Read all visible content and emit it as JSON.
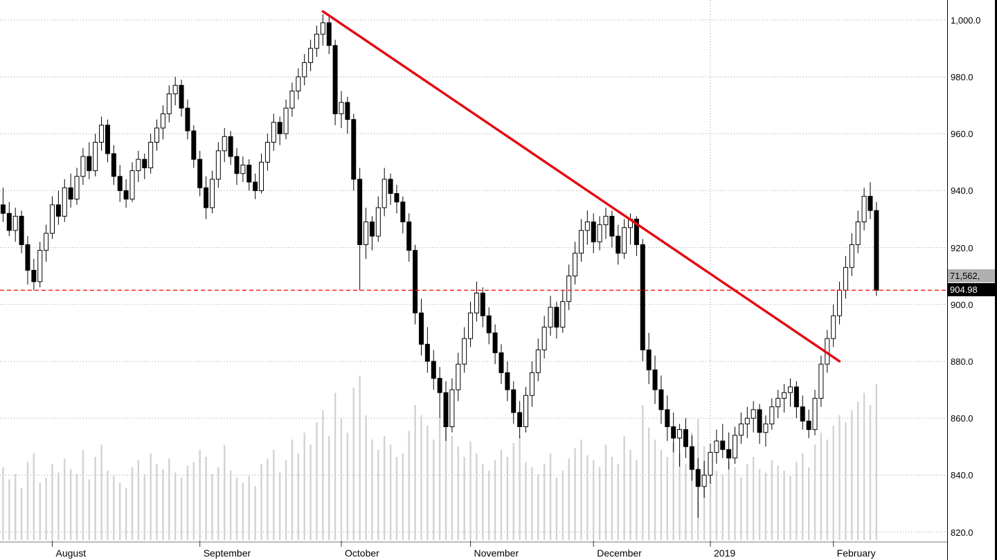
{
  "colors": {
    "up_candle": "#ffffff",
    "down_candle": "#000000",
    "candle_border": "#000000",
    "volume_bar": "#d2d2d2",
    "grid": "#9a9a9a",
    "axis_line": "#777777",
    "tick_mark": "#333333",
    "trend_line": "#e30b13",
    "last_price_line": "#ff1111",
    "price_tag_bg": "#000000",
    "price_tag_text": "#ffffff",
    "volume_tag_bg": "#b0b0b0",
    "volume_tag_text": "#000000"
  },
  "chart_data": {
    "type": "candlestick",
    "title": "",
    "xlabel": "",
    "ylabel": "",
    "ylim": [
      816,
      1007
    ],
    "right_pad": 11,
    "grid": true,
    "last_price": 904.98,
    "last_price_label": "904.98",
    "volume_label": "71,562,",
    "y_ticks": [
      {
        "value": 1000,
        "label": "1,000.0"
      },
      {
        "value": 980,
        "label": "980.0"
      },
      {
        "value": 960,
        "label": "960.0"
      },
      {
        "value": 940,
        "label": "940.0"
      },
      {
        "value": 920,
        "label": "920.0"
      },
      {
        "value": 900,
        "label": "900.0"
      },
      {
        "value": 880,
        "label": "880.0"
      },
      {
        "value": 860,
        "label": "860.0"
      },
      {
        "value": 840,
        "label": "840.0"
      },
      {
        "value": 820,
        "label": "820.0"
      }
    ],
    "x_ticks": [
      {
        "label": "August",
        "index": 8
      },
      {
        "label": "September",
        "index": 32
      },
      {
        "label": "October",
        "index": 55
      },
      {
        "label": "November",
        "index": 76
      },
      {
        "label": "December",
        "index": 96
      },
      {
        "label": "2019",
        "index": 115,
        "gridline": true
      },
      {
        "label": "February",
        "index": 135
      }
    ],
    "trendline": {
      "from": {
        "index": 52,
        "price": 1003
      },
      "to": {
        "index": 136,
        "price": 880
      }
    },
    "candles": [
      [
        935,
        941,
        929,
        932
      ],
      [
        932,
        936,
        924,
        926
      ],
      [
        926,
        934,
        922,
        931
      ],
      [
        931,
        933,
        918,
        921
      ],
      [
        921,
        924,
        907,
        912
      ],
      [
        912,
        916,
        905,
        908
      ],
      [
        908,
        922,
        906,
        919
      ],
      [
        919,
        928,
        915,
        925
      ],
      [
        925,
        938,
        923,
        935
      ],
      [
        935,
        940,
        928,
        931
      ],
      [
        931,
        944,
        929,
        941
      ],
      [
        941,
        946,
        934,
        937
      ],
      [
        937,
        948,
        935,
        945
      ],
      [
        945,
        955,
        942,
        952
      ],
      [
        952,
        957,
        944,
        947
      ],
      [
        947,
        960,
        945,
        957
      ],
      [
        957,
        966,
        954,
        963
      ],
      [
        963,
        965,
        950,
        953
      ],
      [
        953,
        956,
        942,
        945
      ],
      [
        945,
        949,
        936,
        940
      ],
      [
        940,
        944,
        934,
        937
      ],
      [
        937,
        950,
        936,
        947
      ],
      [
        947,
        954,
        943,
        951
      ],
      [
        951,
        953,
        944,
        948
      ],
      [
        948,
        960,
        946,
        957
      ],
      [
        957,
        965,
        954,
        962
      ],
      [
        962,
        970,
        958,
        967
      ],
      [
        967,
        977,
        964,
        974
      ],
      [
        974,
        980,
        970,
        977
      ],
      [
        977,
        979,
        966,
        969
      ],
      [
        969,
        972,
        958,
        961
      ],
      [
        961,
        963,
        948,
        951
      ],
      [
        951,
        954,
        938,
        941
      ],
      [
        941,
        945,
        930,
        934
      ],
      [
        934,
        947,
        932,
        944
      ],
      [
        944,
        957,
        941,
        954
      ],
      [
        954,
        962,
        950,
        959
      ],
      [
        959,
        961,
        949,
        952
      ],
      [
        952,
        955,
        942,
        946
      ],
      [
        946,
        952,
        943,
        949
      ],
      [
        949,
        951,
        940,
        943
      ],
      [
        943,
        946,
        937,
        940
      ],
      [
        940,
        953,
        939,
        950
      ],
      [
        950,
        960,
        947,
        957
      ],
      [
        957,
        967,
        954,
        964
      ],
      [
        964,
        966,
        956,
        960
      ],
      [
        960,
        972,
        958,
        969
      ],
      [
        969,
        978,
        966,
        975
      ],
      [
        975,
        983,
        972,
        980
      ],
      [
        980,
        988,
        977,
        985
      ],
      [
        985,
        993,
        982,
        990
      ],
      [
        990,
        998,
        987,
        995
      ],
      [
        995,
        1002,
        991,
        999
      ],
      [
        999,
        1001,
        988,
        991
      ],
      [
        991,
        993,
        963,
        967
      ],
      [
        967,
        975,
        962,
        971
      ],
      [
        971,
        973,
        960,
        965
      ],
      [
        965,
        967,
        940,
        944
      ],
      [
        944,
        948,
        905,
        921
      ],
      [
        921,
        934,
        916,
        929
      ],
      [
        929,
        931,
        919,
        924
      ],
      [
        924,
        938,
        922,
        934
      ],
      [
        934,
        948,
        931,
        944
      ],
      [
        944,
        946,
        935,
        939
      ],
      [
        939,
        942,
        932,
        936
      ],
      [
        936,
        938,
        925,
        929
      ],
      [
        929,
        932,
        915,
        919
      ],
      [
        919,
        921,
        893,
        897
      ],
      [
        897,
        902,
        882,
        886
      ],
      [
        886,
        892,
        876,
        880
      ],
      [
        880,
        884,
        870,
        874
      ],
      [
        874,
        878,
        860,
        869
      ],
      [
        869,
        873,
        852,
        857
      ],
      [
        857,
        874,
        855,
        870
      ],
      [
        870,
        883,
        866,
        879
      ],
      [
        879,
        892,
        876,
        888
      ],
      [
        888,
        901,
        885,
        897
      ],
      [
        897,
        908,
        894,
        904
      ],
      [
        904,
        906,
        892,
        896
      ],
      [
        896,
        899,
        886,
        890
      ],
      [
        890,
        893,
        879,
        883
      ],
      [
        883,
        886,
        872,
        876
      ],
      [
        876,
        880,
        866,
        870
      ],
      [
        870,
        873,
        858,
        862
      ],
      [
        862,
        866,
        853,
        857
      ],
      [
        857,
        871,
        855,
        868
      ],
      [
        868,
        880,
        864,
        876
      ],
      [
        876,
        888,
        873,
        884
      ],
      [
        884,
        896,
        881,
        892
      ],
      [
        892,
        903,
        889,
        899
      ],
      [
        899,
        901,
        888,
        892
      ],
      [
        892,
        905,
        890,
        901
      ],
      [
        901,
        914,
        898,
        910
      ],
      [
        910,
        922,
        907,
        918
      ],
      [
        918,
        930,
        915,
        926
      ],
      [
        926,
        933,
        921,
        929
      ],
      [
        929,
        932,
        918,
        922
      ],
      [
        922,
        931,
        919,
        928
      ],
      [
        928,
        934,
        923,
        931
      ],
      [
        931,
        933,
        920,
        924
      ],
      [
        924,
        928,
        914,
        918
      ],
      [
        918,
        930,
        916,
        927
      ],
      [
        927,
        932,
        921,
        930
      ],
      [
        930,
        931,
        917,
        921
      ],
      [
        921,
        923,
        880,
        884
      ],
      [
        884,
        890,
        872,
        877
      ],
      [
        877,
        882,
        865,
        870
      ],
      [
        870,
        875,
        858,
        863
      ],
      [
        863,
        868,
        852,
        857
      ],
      [
        857,
        862,
        848,
        853
      ],
      [
        853,
        858,
        843,
        856
      ],
      [
        856,
        860,
        846,
        850
      ],
      [
        850,
        854,
        838,
        842
      ],
      [
        842,
        846,
        825,
        836
      ],
      [
        836,
        845,
        832,
        840
      ],
      [
        840,
        851,
        837,
        848
      ],
      [
        848,
        856,
        844,
        852
      ],
      [
        852,
        858,
        846,
        849
      ],
      [
        849,
        855,
        842,
        846
      ],
      [
        846,
        857,
        844,
        854
      ],
      [
        854,
        862,
        851,
        858
      ],
      [
        858,
        864,
        853,
        860
      ],
      [
        860,
        866,
        855,
        863
      ],
      [
        863,
        865,
        851,
        855
      ],
      [
        855,
        861,
        850,
        858
      ],
      [
        858,
        867,
        856,
        864
      ],
      [
        864,
        870,
        860,
        867
      ],
      [
        867,
        872,
        862,
        869
      ],
      [
        869,
        874,
        864,
        871
      ],
      [
        871,
        873,
        860,
        864
      ],
      [
        864,
        868,
        856,
        859
      ],
      [
        859,
        863,
        853,
        856
      ],
      [
        856,
        870,
        854,
        867
      ],
      [
        867,
        882,
        864,
        879
      ],
      [
        879,
        891,
        876,
        888
      ],
      [
        888,
        900,
        885,
        896
      ],
      [
        896,
        908,
        893,
        905
      ],
      [
        905,
        917,
        902,
        913
      ],
      [
        913,
        925,
        910,
        921
      ],
      [
        921,
        933,
        918,
        929
      ],
      [
        929,
        941,
        926,
        938
      ],
      [
        938,
        943,
        930,
        933
      ],
      [
        933,
        936,
        903,
        904.98
      ]
    ],
    "volumes": [
      42,
      35,
      38,
      30,
      45,
      50,
      33,
      36,
      44,
      39,
      47,
      41,
      38,
      52,
      35,
      48,
      55,
      40,
      37,
      33,
      30,
      42,
      46,
      38,
      50,
      44,
      41,
      47,
      39,
      36,
      43,
      45,
      52,
      48,
      38,
      42,
      55,
      40,
      36,
      33,
      37,
      31,
      44,
      47,
      52,
      39,
      46,
      58,
      50,
      62,
      55,
      68,
      75,
      60,
      85,
      70,
      62,
      88,
      95,
      72,
      58,
      52,
      60,
      55,
      48,
      50,
      63,
      78,
      72,
      66,
      58,
      70,
      82,
      60,
      54,
      48,
      57,
      50,
      44,
      40,
      46,
      52,
      48,
      56,
      60,
      45,
      42,
      38,
      44,
      50,
      36,
      40,
      47,
      53,
      58,
      49,
      46,
      42,
      55,
      48,
      44,
      60,
      52,
      46,
      78,
      65,
      58,
      52,
      48,
      56,
      50,
      44,
      62,
      70,
      54,
      47,
      40,
      38,
      45,
      42,
      36,
      44,
      48,
      41,
      39,
      46,
      43,
      40,
      37,
      45,
      50,
      42,
      55,
      62,
      58,
      66,
      72,
      68,
      75,
      80,
      85,
      78,
      90
    ]
  }
}
